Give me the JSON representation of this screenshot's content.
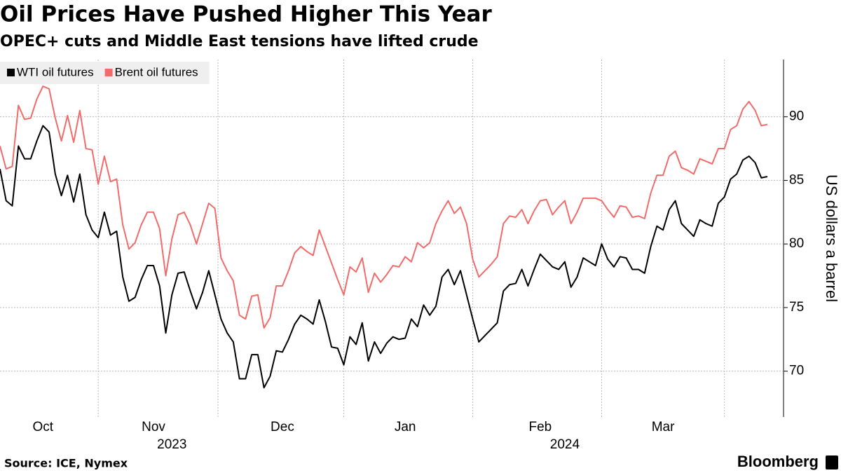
{
  "chart_data": {
    "type": "line",
    "title": "Oil Prices Have Pushed Higher This Year",
    "subtitle": "OPEC+ cuts and Middle East tensions have lifted crude",
    "ylabel": "US dollars a barrel",
    "source": "Source: ICE, Nymex",
    "brand": "Bloomberg",
    "legend": "top-left",
    "grid": true,
    "ylim": [
      66.4,
      94.5
    ],
    "yticks": [
      70,
      75,
      80,
      85,
      90
    ],
    "categories": [
      null,
      null,
      null,
      null,
      null,
      null,
      null,
      "Oct",
      null,
      null,
      null,
      null,
      null,
      null,
      null,
      null,
      null,
      null,
      null,
      null,
      null,
      null,
      null,
      null,
      null,
      "Nov",
      null,
      null,
      null,
      null,
      null,
      null,
      null,
      null,
      null,
      null,
      null,
      null,
      null,
      null,
      null,
      null,
      null,
      null,
      null,
      null,
      "Dec",
      null,
      null,
      null,
      null,
      null,
      null,
      null,
      null,
      null,
      null,
      null,
      null,
      null,
      null,
      null,
      null,
      null,
      null,
      null,
      "Jan",
      null,
      null,
      null,
      null,
      null,
      null,
      null,
      null,
      null,
      null,
      null,
      null,
      null,
      null,
      null,
      null,
      null,
      null,
      null,
      null,
      null,
      "Feb",
      null,
      null,
      null,
      null,
      null,
      null,
      null,
      null,
      null,
      null,
      null,
      null,
      null,
      null,
      null,
      null,
      null,
      null,
      null,
      "Mar",
      null,
      null,
      null,
      null,
      null,
      null,
      null,
      null,
      null,
      null,
      null,
      null,
      null,
      null,
      null,
      null,
      null
    ],
    "year_labels": [
      null,
      null,
      null,
      null,
      null,
      null,
      null,
      null,
      null,
      null,
      null,
      null,
      null,
      null,
      null,
      null,
      null,
      null,
      null,
      null,
      null,
      null,
      null,
      null,
      null,
      null,
      null,
      null,
      "2023",
      null,
      null,
      null,
      null,
      null,
      null,
      null,
      null,
      null,
      null,
      null,
      null,
      null,
      null,
      null,
      null,
      null,
      null,
      null,
      null,
      null,
      null,
      null,
      null,
      null,
      null,
      null,
      null,
      null,
      null,
      null,
      null,
      null,
      null,
      null,
      null,
      null,
      null,
      null,
      null,
      null,
      null,
      null,
      null,
      null,
      null,
      null,
      null,
      null,
      null,
      null,
      null,
      null,
      null,
      null,
      null,
      null,
      null,
      null,
      null,
      null,
      null,
      null,
      "2024",
      null,
      null,
      null,
      null,
      null,
      null,
      null,
      null,
      null,
      null,
      null,
      null,
      null,
      null,
      null,
      null,
      null,
      null,
      null,
      null,
      null,
      null,
      null,
      null,
      null,
      null,
      null,
      null,
      null,
      null,
      null,
      null,
      null
    ],
    "series": [
      {
        "name": "WTI oil futures",
        "color": "#000000",
        "values": [
          85.9,
          83.4,
          83.0,
          87.7,
          86.7,
          86.7,
          88.1,
          89.3,
          88.8,
          85.5,
          83.8,
          85.4,
          83.3,
          85.5,
          82.3,
          81.1,
          80.5,
          82.5,
          80.7,
          81.0,
          77.4,
          75.5,
          75.8,
          77.2,
          78.3,
          78.3,
          76.7,
          73.0,
          76.0,
          77.7,
          77.8,
          76.3,
          74.9,
          76.2,
          77.9,
          76.0,
          74.1,
          73.0,
          72.3,
          69.4,
          69.4,
          71.3,
          71.3,
          68.7,
          69.6,
          71.6,
          71.5,
          72.5,
          73.7,
          74.4,
          74.1,
          73.7,
          75.6,
          73.9,
          71.9,
          71.8,
          70.5,
          72.7,
          72.1,
          73.8,
          70.8,
          72.3,
          71.4,
          72.2,
          72.7,
          72.5,
          72.6,
          74.1,
          73.5,
          75.2,
          74.4,
          75.1,
          77.4,
          78.0,
          76.8,
          77.9,
          76.0,
          74.1,
          72.3,
          72.8,
          73.3,
          73.8,
          76.3,
          76.8,
          76.9,
          78.0,
          76.7,
          78.0,
          79.2,
          78.7,
          78.2,
          78.0,
          78.6,
          76.6,
          77.4,
          78.9,
          78.6,
          78.3,
          80.0,
          78.8,
          78.2,
          79.0,
          78.9,
          78.0,
          78.0,
          77.7,
          79.8,
          81.4,
          81.1,
          82.7,
          83.4,
          81.6,
          81.1,
          80.6,
          81.9,
          81.6,
          81.4,
          83.2,
          83.7,
          85.1,
          85.5,
          86.6,
          86.9,
          86.4,
          85.2,
          85.3
        ]
      },
      {
        "name": "Brent oil futures",
        "color": "#f26b6b",
        "values": [
          87.7,
          85.9,
          86.1,
          90.9,
          89.8,
          89.9,
          91.4,
          92.4,
          92.2,
          89.9,
          88.1,
          90.1,
          88.0,
          90.5,
          87.5,
          87.4,
          84.7,
          86.9,
          84.9,
          85.1,
          81.5,
          79.6,
          80.1,
          81.5,
          82.5,
          82.5,
          81.2,
          77.5,
          80.4,
          82.3,
          82.5,
          81.5,
          80.0,
          81.6,
          83.2,
          82.8,
          78.9,
          77.9,
          77.1,
          74.4,
          74.1,
          75.9,
          76.0,
          73.4,
          74.2,
          76.7,
          76.7,
          77.9,
          79.3,
          79.8,
          79.4,
          79.1,
          81.1,
          79.8,
          78.5,
          77.2,
          76.0,
          78.2,
          77.8,
          78.9,
          76.2,
          77.7,
          77.0,
          77.6,
          78.3,
          78.2,
          79.0,
          78.6,
          80.1,
          79.7,
          80.1,
          81.6,
          82.6,
          83.4,
          82.4,
          82.9,
          81.6,
          78.8,
          77.4,
          77.9,
          78.4,
          79.0,
          81.6,
          82.2,
          82.1,
          82.7,
          81.6,
          82.6,
          83.4,
          83.5,
          82.3,
          82.9,
          83.4,
          81.6,
          82.5,
          83.6,
          83.6,
          83.6,
          83.4,
          82.7,
          82.1,
          83.0,
          82.9,
          82.1,
          82.2,
          82.0,
          84.0,
          85.4,
          85.4,
          86.9,
          87.3,
          86.0,
          85.8,
          85.5,
          86.7,
          86.5,
          86.3,
          87.5,
          87.5,
          89.0,
          89.3,
          90.6,
          91.2,
          90.5,
          89.3,
          89.4
        ]
      }
    ]
  }
}
